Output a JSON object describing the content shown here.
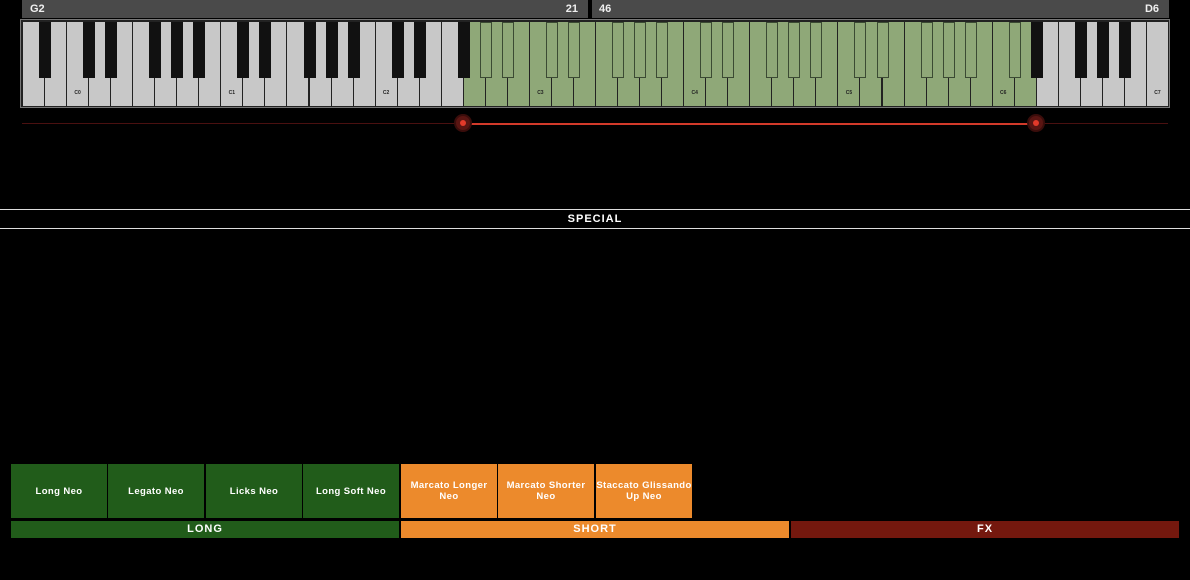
{
  "range": {
    "low_note": "G2",
    "low_value": "21",
    "high_value": "46",
    "high_note": "D6"
  },
  "keyboard": {
    "octave_labels": [
      "C0",
      "C1",
      "C2",
      "C3",
      "C4",
      "C5",
      "C6",
      "C7"
    ],
    "active_range": {
      "from": "G2",
      "to": "D6"
    },
    "active_color": "#8fa878"
  },
  "section_title": "SPECIAL",
  "articulations": [
    {
      "label": "Long Neo",
      "category": "long"
    },
    {
      "label": "Legato Neo",
      "category": "long"
    },
    {
      "label": "Licks Neo",
      "category": "long"
    },
    {
      "label": "Long Soft Neo",
      "category": "long"
    },
    {
      "label": "Marcato Longer Neo",
      "category": "short"
    },
    {
      "label": "Marcato Shorter Neo",
      "category": "short"
    },
    {
      "label": "Staccato Glissando Up Neo",
      "category": "short"
    }
  ],
  "categories": [
    {
      "label": "LONG",
      "color": "#215c1a"
    },
    {
      "label": "SHORT",
      "color": "#ec8a2c"
    },
    {
      "label": "FX",
      "color": "#74180e"
    }
  ]
}
